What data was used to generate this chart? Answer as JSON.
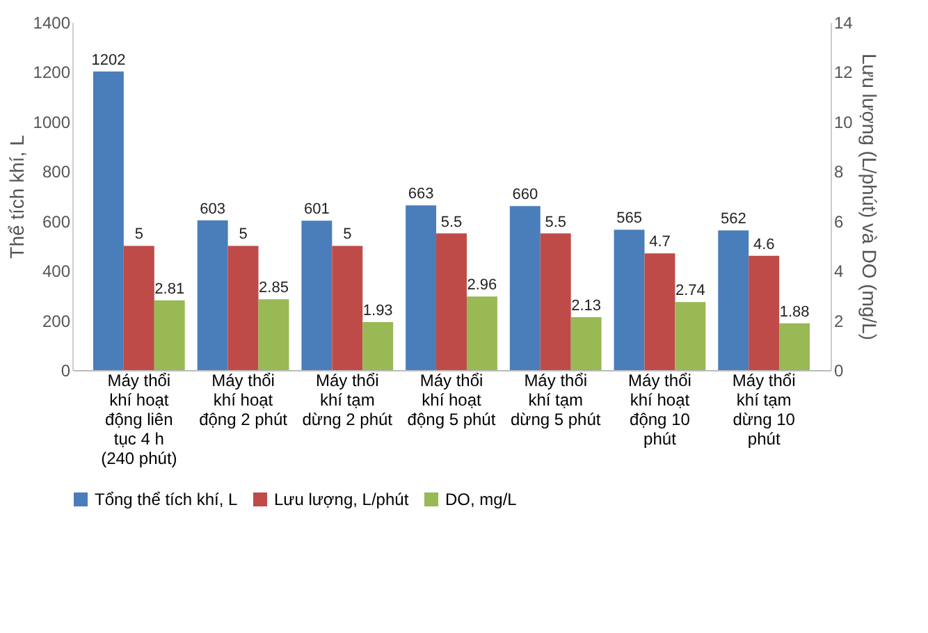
{
  "chart_data": {
    "type": "bar",
    "ylabel": "Thể tích khí, L",
    "y2label": "Lưu lượng (L/phút) và DO (mg/L)",
    "categories": [
      "Máy thổi khí hoạt động liên tục 4 h (240 phút)",
      "Máy thổi khí hoạt động 2 phút",
      "Máy thổi khí tạm dừng 2 phút",
      "Máy thổi khí hoạt động 5 phút",
      "Máy thổi khí tạm dừng 5 phút",
      "Máy thổi khí hoạt động 10 phút",
      "Máy thổi khí tạm dừng 10 phút"
    ],
    "series": [
      {
        "name": "Tổng thể tích khí, L",
        "color": "#4a7ebb",
        "values": [
          1202,
          603,
          601,
          663,
          660,
          565,
          562
        ]
      },
      {
        "name": "Lưu lượng, L/phút",
        "color": "#be4b48",
        "axis": "y2",
        "values": [
          5,
          5,
          5,
          5.5,
          5.5,
          4.7,
          4.6
        ]
      },
      {
        "name": "DO, mg/L",
        "color": "#98b954",
        "axis": "y2",
        "values": [
          2.81,
          2.85,
          1.93,
          2.96,
          2.13,
          2.74,
          1.88
        ]
      }
    ],
    "ylim": [
      0,
      1400
    ],
    "yticks": [
      0,
      200,
      400,
      600,
      800,
      1000,
      1200,
      1400
    ],
    "y2lim": [
      0,
      14
    ],
    "y2ticks": [
      0,
      2,
      4,
      6,
      8,
      10,
      12,
      14
    ],
    "data_labels": true,
    "grid": false,
    "legend": "bottom"
  }
}
